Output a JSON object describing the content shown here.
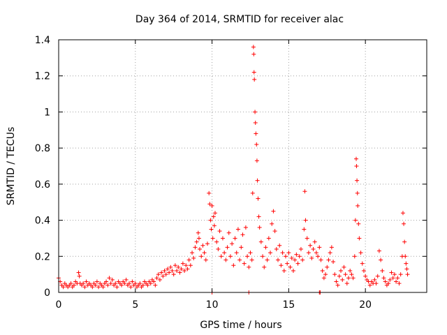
{
  "chart_data": {
    "type": "scatter",
    "title": "Day 364 of 2014, SRMTID for receiver alac",
    "xlabel": "GPS time / hours",
    "ylabel": "SRMTID / TECUs",
    "xlim": [
      0,
      24
    ],
    "ylim": [
      0,
      1.4
    ],
    "xticks": [
      0,
      5,
      10,
      15,
      20
    ],
    "xtick_labels": [
      "0",
      "5",
      "10",
      "15",
      "20"
    ],
    "yticks": [
      0,
      0.2,
      0.4,
      0.6,
      0.8,
      1.0,
      1.2,
      1.4
    ],
    "ytick_labels": [
      "0",
      "0.2",
      "0.4",
      "0.6",
      "0.8",
      "1",
      "1.2",
      "1.4"
    ],
    "grid": true,
    "marker": "plus",
    "color": "#ff0000",
    "series": [
      {
        "name": "SRMTID",
        "points": [
          [
            0.0,
            0.08
          ],
          [
            0.1,
            0.06
          ],
          [
            0.2,
            0.04
          ],
          [
            0.3,
            0.03
          ],
          [
            0.4,
            0.05
          ],
          [
            0.5,
            0.04
          ],
          [
            0.6,
            0.03
          ],
          [
            0.7,
            0.04
          ],
          [
            0.8,
            0.05
          ],
          [
            0.9,
            0.03
          ],
          [
            1.0,
            0.04
          ],
          [
            1.1,
            0.06
          ],
          [
            1.2,
            0.05
          ],
          [
            1.3,
            0.11
          ],
          [
            1.35,
            0.09
          ],
          [
            1.4,
            0.05
          ],
          [
            1.5,
            0.04
          ],
          [
            1.6,
            0.05
          ],
          [
            1.7,
            0.03
          ],
          [
            1.8,
            0.06
          ],
          [
            1.9,
            0.04
          ],
          [
            2.0,
            0.05
          ],
          [
            2.1,
            0.04
          ],
          [
            2.2,
            0.03
          ],
          [
            2.3,
            0.05
          ],
          [
            2.4,
            0.04
          ],
          [
            2.5,
            0.06
          ],
          [
            2.6,
            0.03
          ],
          [
            2.7,
            0.05
          ],
          [
            2.8,
            0.04
          ],
          [
            2.9,
            0.03
          ],
          [
            3.0,
            0.05
          ],
          [
            3.1,
            0.06
          ],
          [
            3.2,
            0.04
          ],
          [
            3.3,
            0.08
          ],
          [
            3.4,
            0.05
          ],
          [
            3.5,
            0.07
          ],
          [
            3.6,
            0.04
          ],
          [
            3.7,
            0.05
          ],
          [
            3.8,
            0.03
          ],
          [
            3.9,
            0.06
          ],
          [
            4.0,
            0.05
          ],
          [
            4.1,
            0.04
          ],
          [
            4.2,
            0.06
          ],
          [
            4.3,
            0.05
          ],
          [
            4.4,
            0.07
          ],
          [
            4.5,
            0.04
          ],
          [
            4.6,
            0.05
          ],
          [
            4.7,
            0.03
          ],
          [
            4.8,
            0.06
          ],
          [
            4.9,
            0.04
          ],
          [
            5.0,
            0.05
          ],
          [
            5.1,
            0.03
          ],
          [
            5.2,
            0.04
          ],
          [
            5.3,
            0.05
          ],
          [
            5.4,
            0.03
          ],
          [
            5.5,
            0.04
          ],
          [
            5.6,
            0.06
          ],
          [
            5.7,
            0.05
          ],
          [
            5.8,
            0.04
          ],
          [
            5.9,
            0.06
          ],
          [
            6.0,
            0.05
          ],
          [
            6.1,
            0.07
          ],
          [
            6.2,
            0.06
          ],
          [
            6.3,
            0.04
          ],
          [
            6.4,
            0.08
          ],
          [
            6.5,
            0.1
          ],
          [
            6.6,
            0.07
          ],
          [
            6.7,
            0.11
          ],
          [
            6.8,
            0.09
          ],
          [
            6.9,
            0.12
          ],
          [
            7.0,
            0.1
          ],
          [
            7.1,
            0.13
          ],
          [
            7.2,
            0.11
          ],
          [
            7.3,
            0.14
          ],
          [
            7.4,
            0.12
          ],
          [
            7.5,
            0.1
          ],
          [
            7.6,
            0.15
          ],
          [
            7.7,
            0.12
          ],
          [
            7.8,
            0.14
          ],
          [
            7.9,
            0.11
          ],
          [
            8.0,
            0.13
          ],
          [
            8.1,
            0.16
          ],
          [
            8.2,
            0.12
          ],
          [
            8.3,
            0.15
          ],
          [
            8.4,
            0.13
          ],
          [
            8.5,
            0.18
          ],
          [
            8.6,
            0.15
          ],
          [
            8.7,
            0.22
          ],
          [
            8.8,
            0.19
          ],
          [
            8.9,
            0.25
          ],
          [
            9.0,
            0.28
          ],
          [
            9.1,
            0.33
          ],
          [
            9.15,
            0.3
          ],
          [
            9.2,
            0.24
          ],
          [
            9.3,
            0.2
          ],
          [
            9.4,
            0.26
          ],
          [
            9.5,
            0.22
          ],
          [
            9.6,
            0.18
          ],
          [
            9.7,
            0.27
          ],
          [
            9.8,
            0.55
          ],
          [
            9.85,
            0.49
          ],
          [
            9.9,
            0.4
          ],
          [
            9.95,
            0.35
          ],
          [
            10.0,
            0.48
          ],
          [
            10.05,
            0.3
          ],
          [
            10.1,
            0.42
          ],
          [
            10.15,
            0.37
          ],
          [
            10.2,
            0.44
          ],
          [
            10.3,
            0.28
          ],
          [
            10.4,
            0.24
          ],
          [
            10.5,
            0.34
          ],
          [
            10.6,
            0.2
          ],
          [
            10.7,
            0.3
          ],
          [
            10.8,
            0.22
          ],
          [
            10.9,
            0.18
          ],
          [
            11.0,
            0.25
          ],
          [
            11.1,
            0.33
          ],
          [
            11.2,
            0.2
          ],
          [
            11.3,
            0.27
          ],
          [
            11.4,
            0.15
          ],
          [
            11.5,
            0.3
          ],
          [
            11.6,
            0.22
          ],
          [
            11.7,
            0.35
          ],
          [
            11.8,
            0.18
          ],
          [
            11.9,
            0.25
          ],
          [
            12.0,
            0.32
          ],
          [
            12.1,
            0.16
          ],
          [
            12.2,
            0.36
          ],
          [
            12.3,
            0.2
          ],
          [
            12.4,
            0.14
          ],
          [
            12.5,
            0.22
          ],
          [
            12.6,
            0.18
          ],
          [
            12.65,
            0.55
          ],
          [
            12.7,
            1.36
          ],
          [
            12.72,
            1.32
          ],
          [
            12.74,
            1.22
          ],
          [
            12.76,
            1.18
          ],
          [
            12.8,
            1.0
          ],
          [
            12.83,
            0.94
          ],
          [
            12.86,
            0.88
          ],
          [
            12.9,
            0.82
          ],
          [
            12.93,
            0.73
          ],
          [
            12.96,
            0.62
          ],
          [
            13.0,
            0.52
          ],
          [
            13.05,
            0.42
          ],
          [
            13.1,
            0.36
          ],
          [
            13.2,
            0.28
          ],
          [
            13.3,
            0.2
          ],
          [
            13.4,
            0.14
          ],
          [
            13.5,
            0.25
          ],
          [
            13.6,
            0.18
          ],
          [
            13.7,
            0.3
          ],
          [
            13.8,
            0.22
          ],
          [
            13.9,
            0.38
          ],
          [
            14.0,
            0.45
          ],
          [
            14.1,
            0.34
          ],
          [
            14.2,
            0.24
          ],
          [
            14.3,
            0.18
          ],
          [
            14.4,
            0.26
          ],
          [
            14.5,
            0.15
          ],
          [
            14.6,
            0.22
          ],
          [
            14.7,
            0.12
          ],
          [
            14.8,
            0.2
          ],
          [
            14.9,
            0.16
          ],
          [
            15.0,
            0.22
          ],
          [
            15.1,
            0.14
          ],
          [
            15.2,
            0.19
          ],
          [
            15.3,
            0.12
          ],
          [
            15.4,
            0.18
          ],
          [
            15.5,
            0.21
          ],
          [
            15.6,
            0.16
          ],
          [
            15.7,
            0.2
          ],
          [
            15.8,
            0.24
          ],
          [
            15.9,
            0.18
          ],
          [
            16.0,
            0.35
          ],
          [
            16.05,
            0.56
          ],
          [
            16.1,
            0.4
          ],
          [
            16.2,
            0.3
          ],
          [
            16.3,
            0.22
          ],
          [
            16.4,
            0.26
          ],
          [
            16.5,
            0.19
          ],
          [
            16.6,
            0.24
          ],
          [
            16.7,
            0.28
          ],
          [
            16.8,
            0.22
          ],
          [
            16.9,
            0.2
          ],
          [
            17.0,
            0.25
          ],
          [
            17.1,
            0.18
          ],
          [
            17.2,
            0.12
          ],
          [
            17.3,
            0.08
          ],
          [
            17.4,
            0.1
          ],
          [
            17.5,
            0.14
          ],
          [
            17.6,
            0.18
          ],
          [
            17.7,
            0.22
          ],
          [
            17.8,
            0.25
          ],
          [
            17.9,
            0.17
          ],
          [
            18.0,
            0.1
          ],
          [
            18.1,
            0.06
          ],
          [
            18.2,
            0.04
          ],
          [
            18.3,
            0.09
          ],
          [
            18.4,
            0.12
          ],
          [
            18.5,
            0.07
          ],
          [
            18.6,
            0.14
          ],
          [
            18.7,
            0.1
          ],
          [
            18.8,
            0.05
          ],
          [
            18.9,
            0.08
          ],
          [
            19.0,
            0.12
          ],
          [
            19.1,
            0.1
          ],
          [
            19.2,
            0.08
          ],
          [
            19.3,
            0.2
          ],
          [
            19.35,
            0.4
          ],
          [
            19.4,
            0.74
          ],
          [
            19.42,
            0.7
          ],
          [
            19.45,
            0.62
          ],
          [
            19.48,
            0.55
          ],
          [
            19.5,
            0.48
          ],
          [
            19.55,
            0.38
          ],
          [
            19.6,
            0.3
          ],
          [
            19.7,
            0.22
          ],
          [
            19.8,
            0.16
          ],
          [
            19.9,
            0.12
          ],
          [
            20.0,
            0.09
          ],
          [
            20.1,
            0.07
          ],
          [
            20.2,
            0.06
          ],
          [
            20.3,
            0.04
          ],
          [
            20.4,
            0.06
          ],
          [
            20.5,
            0.05
          ],
          [
            20.6,
            0.07
          ],
          [
            20.7,
            0.05
          ],
          [
            20.8,
            0.09
          ],
          [
            20.9,
            0.23
          ],
          [
            21.0,
            0.18
          ],
          [
            21.1,
            0.12
          ],
          [
            21.2,
            0.08
          ],
          [
            21.3,
            0.06
          ],
          [
            21.4,
            0.04
          ],
          [
            21.5,
            0.05
          ],
          [
            21.6,
            0.07
          ],
          [
            21.7,
            0.11
          ],
          [
            21.8,
            0.08
          ],
          [
            21.9,
            0.1
          ],
          [
            22.0,
            0.06
          ],
          [
            22.1,
            0.08
          ],
          [
            22.2,
            0.05
          ],
          [
            22.3,
            0.1
          ],
          [
            22.4,
            0.2
          ],
          [
            22.45,
            0.44
          ],
          [
            22.5,
            0.38
          ],
          [
            22.55,
            0.28
          ],
          [
            22.6,
            0.2
          ],
          [
            22.65,
            0.16
          ],
          [
            22.7,
            0.13
          ],
          [
            22.75,
            0.1
          ],
          [
            10.0,
            0.0
          ],
          [
            12.4,
            0.0
          ],
          [
            17.0,
            0.0
          ],
          [
            17.05,
            0.0
          ]
        ]
      }
    ]
  }
}
